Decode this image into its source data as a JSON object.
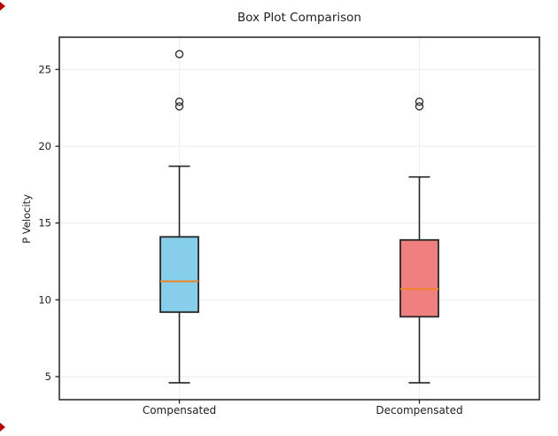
{
  "chart_data": {
    "type": "boxplot",
    "title": "Box Plot Comparison",
    "ylabel": "P Velocity",
    "xlabel": "",
    "categories": [
      "Compensated",
      "Decompensated"
    ],
    "yticks": [
      5,
      10,
      15,
      20,
      25
    ],
    "ylim": [
      3.5,
      27.1
    ],
    "grid": true,
    "legend": false,
    "series": [
      {
        "name": "Compensated",
        "whisker_low": 4.6,
        "q1": 9.2,
        "median": 11.2,
        "q3": 14.1,
        "whisker_high": 18.7,
        "outliers": [
          22.6,
          22.9,
          26.0
        ],
        "fill_color": "#87CEEB"
      },
      {
        "name": "Decompensated",
        "whisker_low": 4.6,
        "q1": 8.9,
        "median": 10.7,
        "q3": 13.9,
        "whisker_high": 18.0,
        "outliers": [
          22.6,
          22.9
        ],
        "fill_color": "#F08080"
      }
    ],
    "median_color": "#ee8426",
    "edge_color": "#262626",
    "grid_color": "#efefef",
    "spine_color": "#2e2e2e",
    "tick_text_color": "#1f1f1f"
  },
  "decorations": {
    "corner_marker_color": "#c00000"
  }
}
